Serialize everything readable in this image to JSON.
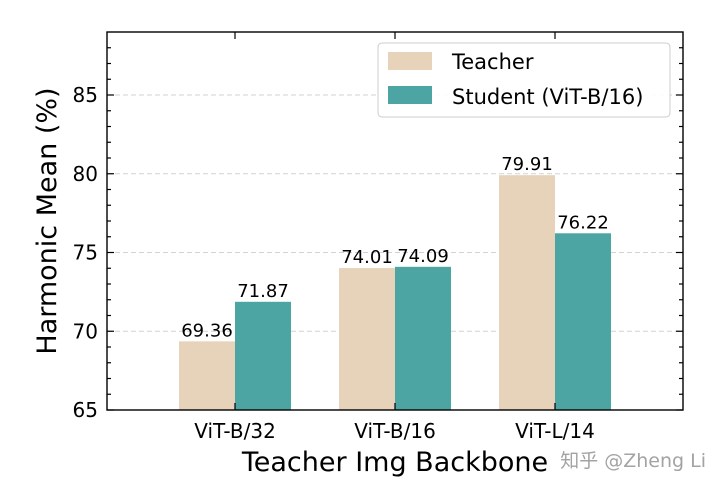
{
  "chart_data": {
    "type": "bar",
    "title": "",
    "xlabel": "Teacher Img Backbone",
    "ylabel": "Harmonic Mean (%)",
    "categories": [
      "ViT-B/32",
      "ViT-B/16",
      "ViT-L/14"
    ],
    "series": [
      {
        "name": "Teacher",
        "values": [
          69.36,
          74.01,
          79.91
        ],
        "color": "#E6D3BA"
      },
      {
        "name": "Student (ViT-B/16)",
        "values": [
          71.87,
          74.09,
          76.22
        ],
        "color": "#4CA5A2"
      }
    ],
    "ylim": [
      65,
      89
    ],
    "yticks": [
      65,
      70,
      75,
      80,
      85
    ],
    "grid": true,
    "legend": "top-right",
    "data_labels": true
  },
  "watermark": "知乎 @Zheng Li"
}
